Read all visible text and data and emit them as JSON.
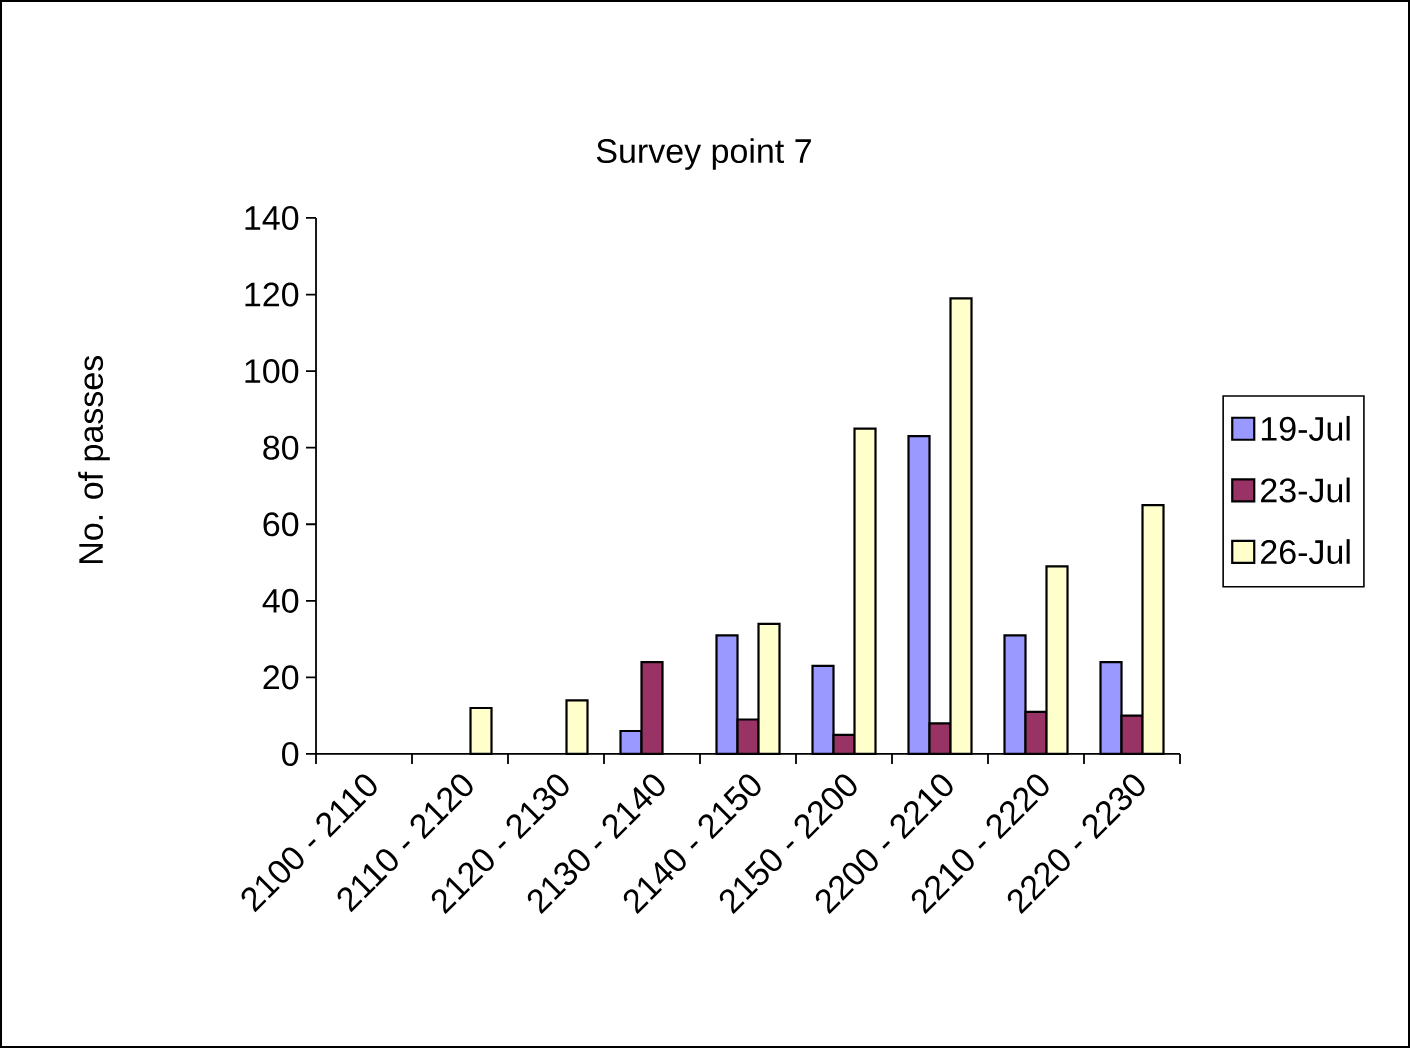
{
  "chart_data": {
    "type": "bar",
    "title": "Survey point 7",
    "ylabel": "No. of passes",
    "categories": [
      "2100 - 2110",
      "2110 - 2120",
      "2120 - 2130",
      "2130 - 2140",
      "2140 - 2150",
      "2150 - 2200",
      "2200 - 2210",
      "2210 - 2220",
      "2220 - 2230"
    ],
    "series": [
      {
        "name": "19-Jul",
        "color": "#9999ff",
        "values": [
          null,
          null,
          null,
          6,
          31,
          23,
          83,
          31,
          24
        ]
      },
      {
        "name": "23-Jul",
        "color": "#993366",
        "values": [
          null,
          null,
          null,
          24,
          9,
          5,
          8,
          11,
          10
        ]
      },
      {
        "name": "26-Jul",
        "color": "#ffffcc",
        "values": [
          null,
          12,
          14,
          null,
          34,
          85,
          119,
          49,
          65
        ]
      }
    ],
    "ylim": [
      0,
      140
    ],
    "yticks": [
      0,
      20,
      40,
      60,
      80,
      100,
      120,
      140
    ],
    "legend": "right"
  }
}
